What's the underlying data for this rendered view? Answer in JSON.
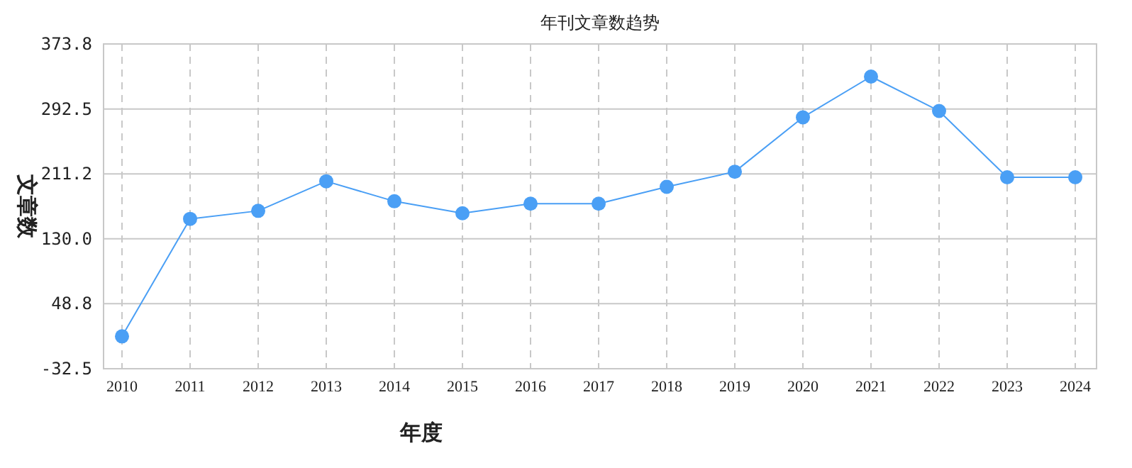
{
  "chart_data": {
    "type": "line",
    "title": "年刊文章数趋势",
    "xlabel": "年度",
    "ylabel": "文章数",
    "categories": [
      "2010",
      "2011",
      "2012",
      "2013",
      "2014",
      "2015",
      "2016",
      "2017",
      "2018",
      "2019",
      "2020",
      "2021",
      "2022",
      "2023",
      "2024"
    ],
    "series": [
      {
        "color": "#4a9ff5",
        "values": [
          8,
          155,
          165,
          202,
          177,
          162,
          174,
          174,
          195,
          214,
          282,
          333,
          290,
          207,
          207
        ]
      }
    ],
    "ylim": [
      -32.5,
      373.8
    ],
    "yticks": [
      {
        "value": -32.5,
        "label": "-32.5"
      },
      {
        "value": 48.8,
        "label": "48.8"
      },
      {
        "value": 130.0,
        "label": "130.0"
      },
      {
        "value": 211.2,
        "label": "211.2"
      },
      {
        "value": 292.5,
        "label": "292.5"
      },
      {
        "value": 373.8,
        "label": "373.8"
      }
    ],
    "grid": true,
    "marker": "circle",
    "line_style": "solid"
  }
}
